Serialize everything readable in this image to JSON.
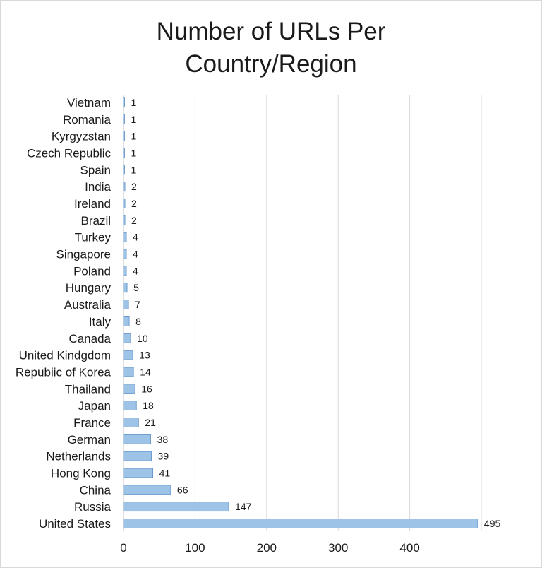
{
  "chart_data": {
    "type": "bar",
    "orientation": "horizontal",
    "title": "Number of URLs Per Country/Region",
    "xlabel": "",
    "ylabel": "",
    "xlim": [
      0,
      500
    ],
    "xticks": [
      0,
      100,
      200,
      300,
      400
    ],
    "grid": "vertical",
    "legend": "none",
    "bar_color": "#9dc3e6",
    "bar_stroke": "#5b8fc7",
    "categories": [
      "Vietnam",
      "Romania",
      "Kyrgyzstan",
      "Czech Republic",
      "Spain",
      "India",
      "Ireland",
      "Brazil",
      "Turkey",
      "Singapore",
      "Poland",
      "Hungary",
      "Australia",
      "Italy",
      "Canada",
      "United Kindgdom",
      "Repubiic of Korea",
      "Thailand",
      "Japan",
      "France",
      "German",
      "Netherlands",
      "Hong Kong",
      "China",
      "Russia",
      "United States"
    ],
    "values": [
      1,
      1,
      1,
      1,
      1,
      2,
      2,
      2,
      4,
      4,
      4,
      5,
      7,
      8,
      10,
      13,
      14,
      16,
      18,
      21,
      38,
      39,
      41,
      66,
      147,
      495
    ]
  }
}
